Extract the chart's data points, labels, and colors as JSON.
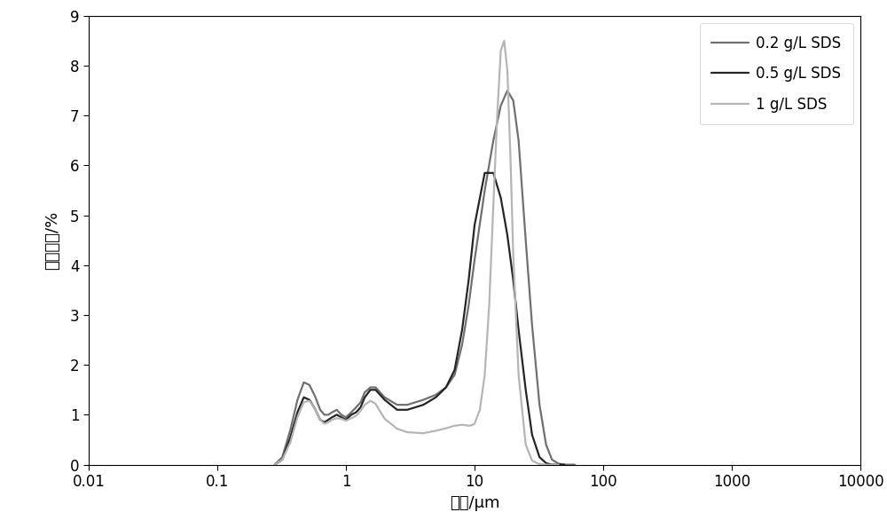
{
  "title": "",
  "xlabel": "粒径/μm",
  "ylabel": "体积密度/%",
  "xlim": [
    0.01,
    10000
  ],
  "ylim": [
    0,
    9
  ],
  "yticks": [
    0,
    1,
    2,
    3,
    4,
    5,
    6,
    7,
    8,
    9
  ],
  "xticks": [
    0.01,
    0.1,
    1,
    10,
    100,
    1000,
    10000
  ],
  "xtick_labels": [
    "0.01",
    "0.1",
    "1",
    "10",
    "100",
    "1000",
    "10000"
  ],
  "series": [
    {
      "label": "0.2 g/L SDS",
      "color": "#707070",
      "linewidth": 1.6,
      "x": [
        0.28,
        0.32,
        0.37,
        0.42,
        0.47,
        0.52,
        0.58,
        0.63,
        0.68,
        0.73,
        0.78,
        0.85,
        0.92,
        1.0,
        1.1,
        1.2,
        1.3,
        1.4,
        1.55,
        1.7,
        2.0,
        2.5,
        3.0,
        4.0,
        5.0,
        6.0,
        7.0,
        8.0,
        9.0,
        10.0,
        12.0,
        14.0,
        16.0,
        18.0,
        20.0,
        22.0,
        25.0,
        28.0,
        32.0,
        36.0,
        40.0,
        45.0,
        50.0,
        60.0
      ],
      "y": [
        0.0,
        0.15,
        0.7,
        1.3,
        1.65,
        1.6,
        1.35,
        1.1,
        1.0,
        1.0,
        1.05,
        1.1,
        1.0,
        0.95,
        1.05,
        1.15,
        1.25,
        1.45,
        1.55,
        1.55,
        1.35,
        1.2,
        1.2,
        1.3,
        1.4,
        1.55,
        1.8,
        2.4,
        3.2,
        4.1,
        5.5,
        6.5,
        7.2,
        7.5,
        7.3,
        6.5,
        4.5,
        2.8,
        1.2,
        0.4,
        0.1,
        0.02,
        0.0,
        0.0
      ]
    },
    {
      "label": "0.5 g/L SDS",
      "color": "#252525",
      "linewidth": 1.6,
      "x": [
        0.28,
        0.32,
        0.37,
        0.42,
        0.47,
        0.52,
        0.58,
        0.63,
        0.68,
        0.73,
        0.78,
        0.85,
        0.92,
        1.0,
        1.1,
        1.2,
        1.3,
        1.4,
        1.55,
        1.7,
        2.0,
        2.5,
        3.0,
        4.0,
        5.0,
        6.0,
        7.0,
        8.0,
        9.0,
        10.0,
        12.0,
        14.0,
        16.0,
        18.0,
        20.0,
        22.0,
        25.0,
        28.0,
        32.0,
        36.0,
        40.0,
        45.0,
        50.0
      ],
      "y": [
        0.0,
        0.1,
        0.55,
        1.05,
        1.35,
        1.3,
        1.1,
        0.9,
        0.85,
        0.9,
        0.95,
        1.0,
        0.95,
        0.9,
        1.0,
        1.05,
        1.15,
        1.35,
        1.5,
        1.5,
        1.3,
        1.1,
        1.1,
        1.2,
        1.35,
        1.55,
        1.9,
        2.7,
        3.7,
        4.8,
        5.85,
        5.85,
        5.35,
        4.6,
        3.7,
        2.7,
        1.5,
        0.6,
        0.15,
        0.03,
        0.0,
        0.0,
        0.0
      ]
    },
    {
      "label": "1 g/L SDS",
      "color": "#b5b5b5",
      "linewidth": 1.6,
      "x": [
        0.28,
        0.32,
        0.37,
        0.42,
        0.47,
        0.52,
        0.58,
        0.63,
        0.68,
        0.73,
        0.78,
        0.85,
        0.92,
        1.0,
        1.1,
        1.2,
        1.3,
        1.4,
        1.55,
        1.7,
        2.0,
        2.5,
        3.0,
        4.0,
        5.0,
        6.0,
        7.0,
        8.0,
        9.0,
        9.5,
        10.0,
        11.0,
        12.0,
        13.0,
        14.0,
        15.0,
        16.0,
        17.0,
        18.0,
        19.0,
        20.0,
        22.0,
        25.0,
        28.0,
        32.0,
        36.0,
        40.0,
        45.0
      ],
      "y": [
        0.0,
        0.1,
        0.45,
        0.95,
        1.25,
        1.28,
        1.1,
        0.9,
        0.82,
        0.85,
        0.9,
        0.93,
        0.92,
        0.88,
        0.93,
        0.98,
        1.08,
        1.2,
        1.28,
        1.22,
        0.92,
        0.72,
        0.65,
        0.63,
        0.68,
        0.73,
        0.78,
        0.8,
        0.78,
        0.79,
        0.82,
        1.1,
        1.8,
        3.2,
        5.2,
        7.0,
        8.3,
        8.5,
        7.9,
        6.2,
        4.2,
        1.8,
        0.4,
        0.08,
        0.01,
        0.0,
        0.0,
        0.0
      ]
    }
  ],
  "legend_loc": "upper right",
  "background_color": "#ffffff",
  "tick_fontsize": 12,
  "label_fontsize": 13,
  "legend_fontsize": 12
}
